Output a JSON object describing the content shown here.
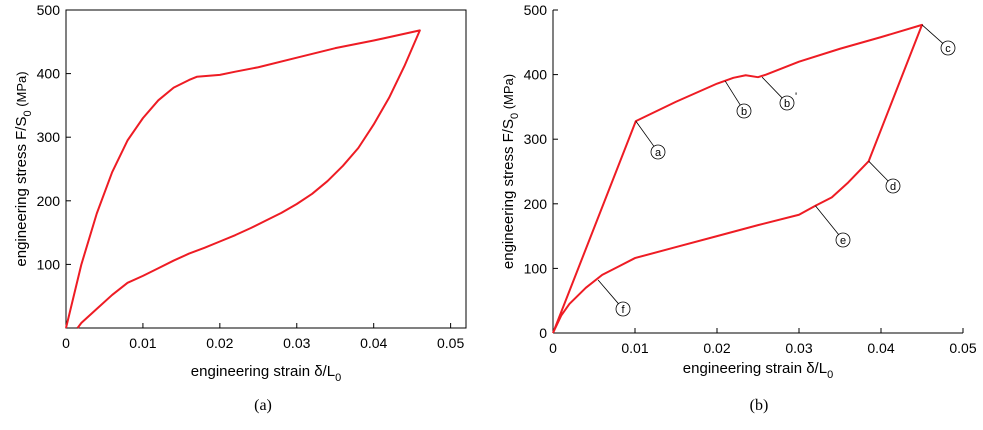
{
  "colors": {
    "curve": "#ee1c24",
    "axis": "#000000",
    "background": "#ffffff"
  },
  "chart_data": [
    {
      "type": "line",
      "panel": "(a)",
      "xlabel": "engineering strain  δ/L",
      "xlabel_sub": "0",
      "ylabel": "engineering stress F/S",
      "ylabel_sub": "0",
      "ylabel_unit": "(MPa)",
      "xlim": [
        0,
        0.052
      ],
      "ylim": [
        0,
        500
      ],
      "xticks": [
        0,
        0.01,
        0.02,
        0.03,
        0.04,
        0.05
      ],
      "xtick_labels": [
        "0",
        "0.01",
        "0.02",
        "0.03",
        "0.04",
        "0.05"
      ],
      "yticks": [
        100,
        200,
        300,
        400,
        500
      ],
      "ytick_labels": [
        "100",
        "200",
        "300",
        "400",
        "500"
      ],
      "grid": false,
      "series": [
        {
          "x": [
            0,
            0.002,
            0.004,
            0.006,
            0.008,
            0.01,
            0.012,
            0.014,
            0.016,
            0.017,
            0.02,
            0.022,
            0.025,
            0.03,
            0.035,
            0.04,
            0.046,
            0.044,
            0.042,
            0.04,
            0.038,
            0.036,
            0.034,
            0.032,
            0.03,
            0.028,
            0.026,
            0.024,
            0.022,
            0.02,
            0.018,
            0.016,
            0.014,
            0.012,
            0.01,
            0.008,
            0.006,
            0.004,
            0.002,
            0.0015
          ],
          "y": [
            0,
            100,
            180,
            245,
            295,
            330,
            358,
            378,
            390,
            395,
            398,
            403,
            410,
            425,
            440,
            452,
            468,
            412,
            362,
            320,
            283,
            255,
            231,
            211,
            195,
            181,
            169,
            157,
            146,
            136,
            126,
            117,
            106,
            94,
            82,
            71,
            52,
            30,
            8,
            0
          ]
        }
      ]
    },
    {
      "type": "line",
      "panel": "(b)",
      "xlabel": "engineering strain  δ/L",
      "xlabel_sub": "0",
      "ylabel": "engineering stress F/S",
      "ylabel_sub": "0",
      "ylabel_unit": "(MPa)",
      "xlim": [
        0,
        0.05
      ],
      "ylim": [
        0,
        500
      ],
      "xticks": [
        0,
        0.01,
        0.02,
        0.03,
        0.04,
        0.05
      ],
      "xtick_labels": [
        "0",
        "0.01",
        "0.02",
        "0.03",
        "0.04",
        "0.05"
      ],
      "yticks": [
        0,
        100,
        200,
        300,
        400,
        500
      ],
      "ytick_labels": [
        "0",
        "100",
        "200",
        "300",
        "400",
        "500"
      ],
      "grid": false,
      "series": [
        {
          "x": [
            0,
            0.0101,
            0.015,
            0.02,
            0.022,
            0.0235,
            0.025,
            0.026,
            0.03,
            0.035,
            0.04,
            0.045,
            0.0385,
            0.036,
            0.034,
            0.032,
            0.03,
            0.025,
            0.02,
            0.015,
            0.01,
            0.008,
            0.006,
            0.004,
            0.002,
            0.001,
            0
          ],
          "y": [
            0,
            328,
            358,
            386,
            395,
            399,
            396,
            400,
            420,
            440,
            458,
            477,
            266,
            233,
            210,
            197,
            183,
            167,
            150,
            133,
            116,
            103,
            90,
            70,
            45,
            27,
            0
          ]
        }
      ],
      "annotations": [
        {
          "label": "a",
          "x": 0.0101,
          "y": 328
        },
        {
          "label": "b",
          "x": 0.021,
          "y": 390
        },
        {
          "label": "b'",
          "x": 0.0255,
          "y": 396
        },
        {
          "label": "c",
          "x": 0.045,
          "y": 477
        },
        {
          "label": "d",
          "x": 0.0385,
          "y": 266
        },
        {
          "label": "e",
          "x": 0.032,
          "y": 197
        },
        {
          "label": "f",
          "x": 0.0055,
          "y": 82
        }
      ]
    }
  ],
  "captions": {
    "a": "(a)",
    "b": "(b)"
  }
}
